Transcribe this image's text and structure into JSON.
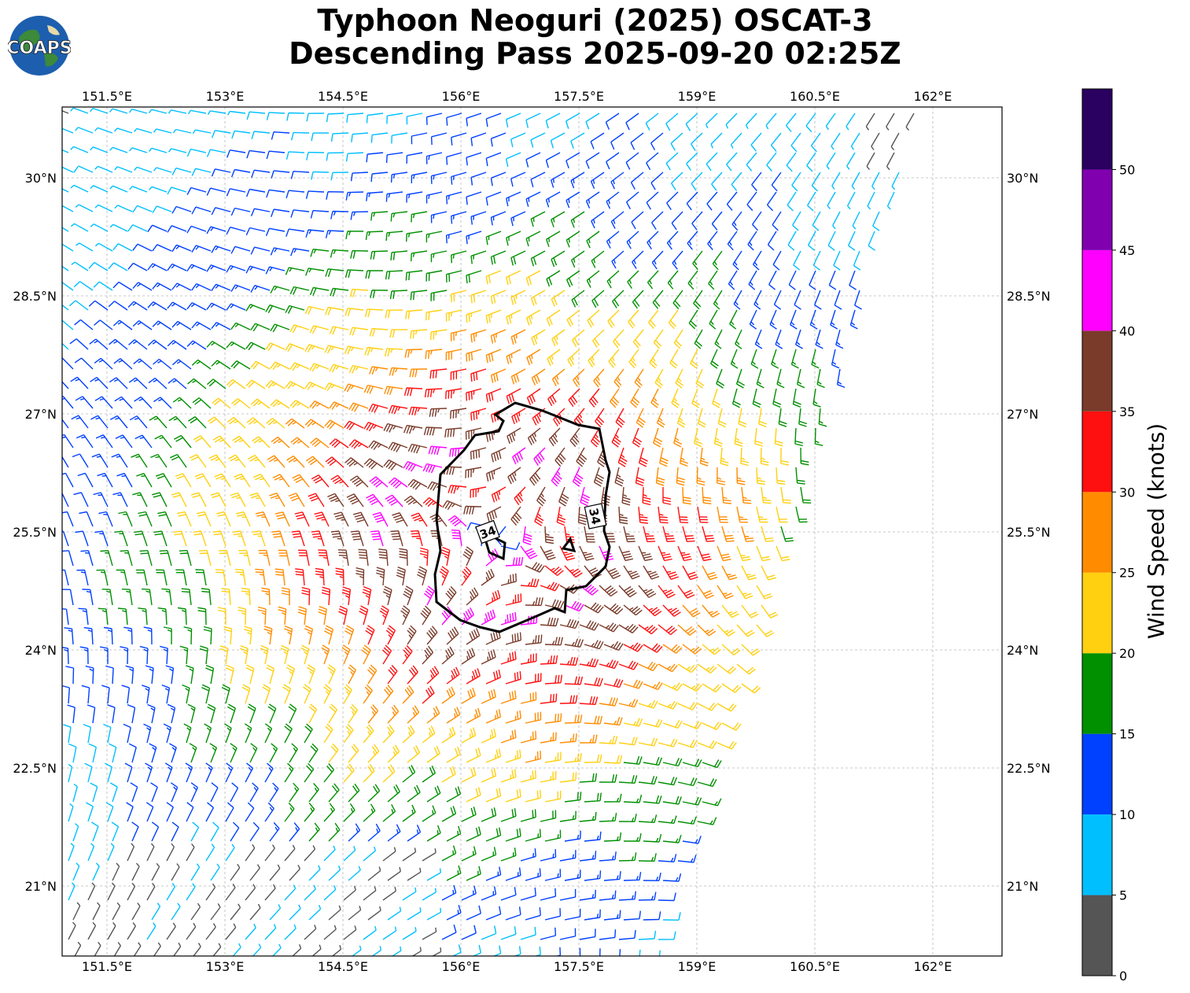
{
  "title": {
    "line1": "Typhoon Neoguri (2025) OSCAT-3",
    "line2": "Descending Pass 2025-09-20 02:25Z"
  },
  "logo": {
    "text": "COAPS",
    "icon": "globe-icon"
  },
  "map": {
    "lon_ticks": [
      "151.5°E",
      "153°E",
      "154.5°E",
      "156°E",
      "157.5°E",
      "159°E",
      "160.5°E",
      "162°E"
    ],
    "lat_ticks": [
      "30°N",
      "28.5°N",
      "27°N",
      "25.5°N",
      "24°N",
      "22.5°N",
      "21°N"
    ],
    "contour_labels": [
      "34",
      "34"
    ],
    "storm_center": {
      "lon": 156.45,
      "lat": 25.4
    },
    "swath_colors_note_only": false
  },
  "colorbar": {
    "label": "Wind Speed (knots)",
    "ticks": [
      "0",
      "5",
      "10",
      "15",
      "20",
      "25",
      "30",
      "35",
      "40",
      "45",
      "50"
    ],
    "bins": [
      {
        "min": 0,
        "max": 5,
        "color": "#555555"
      },
      {
        "min": 5,
        "max": 10,
        "color": "#00bfff"
      },
      {
        "min": 10,
        "max": 15,
        "color": "#0040ff"
      },
      {
        "min": 15,
        "max": 20,
        "color": "#009000"
      },
      {
        "min": 20,
        "max": 25,
        "color": "#ffd010"
      },
      {
        "min": 25,
        "max": 30,
        "color": "#ff8c00"
      },
      {
        "min": 30,
        "max": 35,
        "color": "#ff1010"
      },
      {
        "min": 35,
        "max": 40,
        "color": "#7a3b2a"
      },
      {
        "min": 40,
        "max": 45,
        "color": "#ff00ff"
      },
      {
        "min": 45,
        "max": 50,
        "color": "#8000b0"
      },
      {
        "min": 50,
        "max": 55,
        "color": "#2a0060"
      }
    ]
  }
}
